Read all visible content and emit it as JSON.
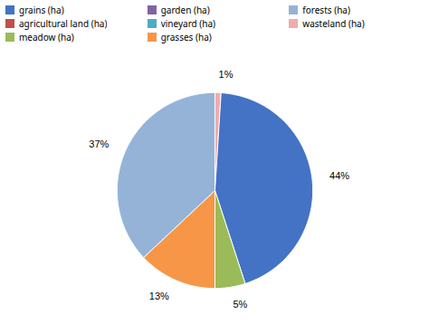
{
  "chart_data": {
    "type": "pie",
    "values": [
      1,
      44,
      5,
      13,
      37
    ],
    "value_labels": [
      "1%",
      "44%",
      "5%",
      "13%",
      "37%"
    ],
    "colors": [
      "#F2ABAB",
      "#4472C4",
      "#9BBB59",
      "#F79646",
      "#95B3D7"
    ],
    "data_labels": true,
    "legend": "upper left",
    "series": [
      {
        "name": "grains (ha)",
        "color": "#4472C4"
      },
      {
        "name": "agricultural land (ha)",
        "color": "#C0504D"
      },
      {
        "name": "meadow (ha)",
        "color": "#9BBB59"
      },
      {
        "name": "garden (ha)",
        "color": "#8064A2"
      },
      {
        "name": "vineyard (ha)",
        "color": "#4BACC6"
      },
      {
        "name": "grasses (ha)",
        "color": "#F79646"
      },
      {
        "name": "forests (ha)",
        "color": "#95B3D7"
      },
      {
        "name": "wasteland  (ha)",
        "color": "#F2ABAB"
      }
    ]
  }
}
